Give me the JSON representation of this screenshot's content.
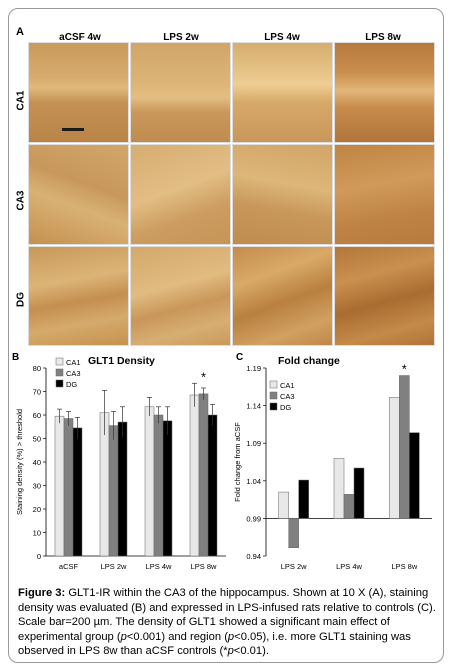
{
  "figure": {
    "panel_a": {
      "letter": "A",
      "columns": [
        "aCSF 4w",
        "LPS 2w",
        "LPS 4w",
        "LPS 8w"
      ],
      "rows": [
        "CA1",
        "CA3",
        "DG"
      ]
    },
    "caption": {
      "label": "Figure 3:",
      "parts": [
        "GLT1-IR within the CA3 of the hippocampus. Shown at 10 X (A), staining density was evaluated (B) and expressed in LPS-infused rats relative to controls (C). Scale bar=200 µm. The density of GLT1 showed a significant main effect of experimental group (",
        "p",
        "<0.001) and region (",
        "p",
        "<0.05), i.e. more GLT1 staining was observed in LPS 8w than aCSF controls (*",
        "p",
        "<0.01)."
      ]
    }
  },
  "chart_data": [
    {
      "panel": "B",
      "type": "bar",
      "title": "GLT1 Density",
      "ylabel": "Staining density (%) > threshold",
      "xlabel": "",
      "ylim": [
        0,
        80
      ],
      "yticks": [
        "0",
        "10",
        "20",
        "30",
        "40",
        "50",
        "60",
        "70",
        "80"
      ],
      "categories": [
        "aCSF",
        "LPS 2w",
        "LPS 4w",
        "LPS 8w"
      ],
      "series": [
        {
          "name": "CA1",
          "color": "#e8e8e8",
          "values": [
            59.5,
            61,
            63.5,
            68.5
          ],
          "errors": [
            3,
            9.5,
            4,
            5
          ]
        },
        {
          "name": "CA3",
          "color": "#808080",
          "values": [
            58.5,
            55.5,
            60,
            69
          ],
          "errors": [
            3,
            6,
            3.5,
            2.5
          ]
        },
        {
          "name": "DG",
          "color": "#000000",
          "values": [
            54.5,
            57,
            57.5,
            60
          ],
          "errors": [
            4.5,
            6.5,
            6,
            4.5
          ]
        }
      ],
      "annotation": "*",
      "legend": "top-left"
    },
    {
      "panel": "C",
      "type": "bar",
      "title": "Fold change",
      "ylabel": "Fold change from aCSF",
      "xlabel": "",
      "ylim": [
        0.94,
        1.19
      ],
      "baseline": 0.99,
      "yticks": [
        "0.94",
        "0.99",
        "1.04",
        "1.09",
        "1.14",
        "1.19"
      ],
      "categories": [
        "LPS 2w",
        "LPS 4w",
        "LPS 8w"
      ],
      "series": [
        {
          "name": "CA1",
          "color": "#e8e8e8",
          "values": [
            1.025,
            1.07,
            1.151
          ]
        },
        {
          "name": "CA3",
          "color": "#808080",
          "values": [
            0.951,
            1.022,
            1.18
          ]
        },
        {
          "name": "DG",
          "color": "#000000",
          "values": [
            1.041,
            1.057,
            1.104
          ]
        }
      ],
      "annotation": "*",
      "legend": "top-left"
    }
  ]
}
